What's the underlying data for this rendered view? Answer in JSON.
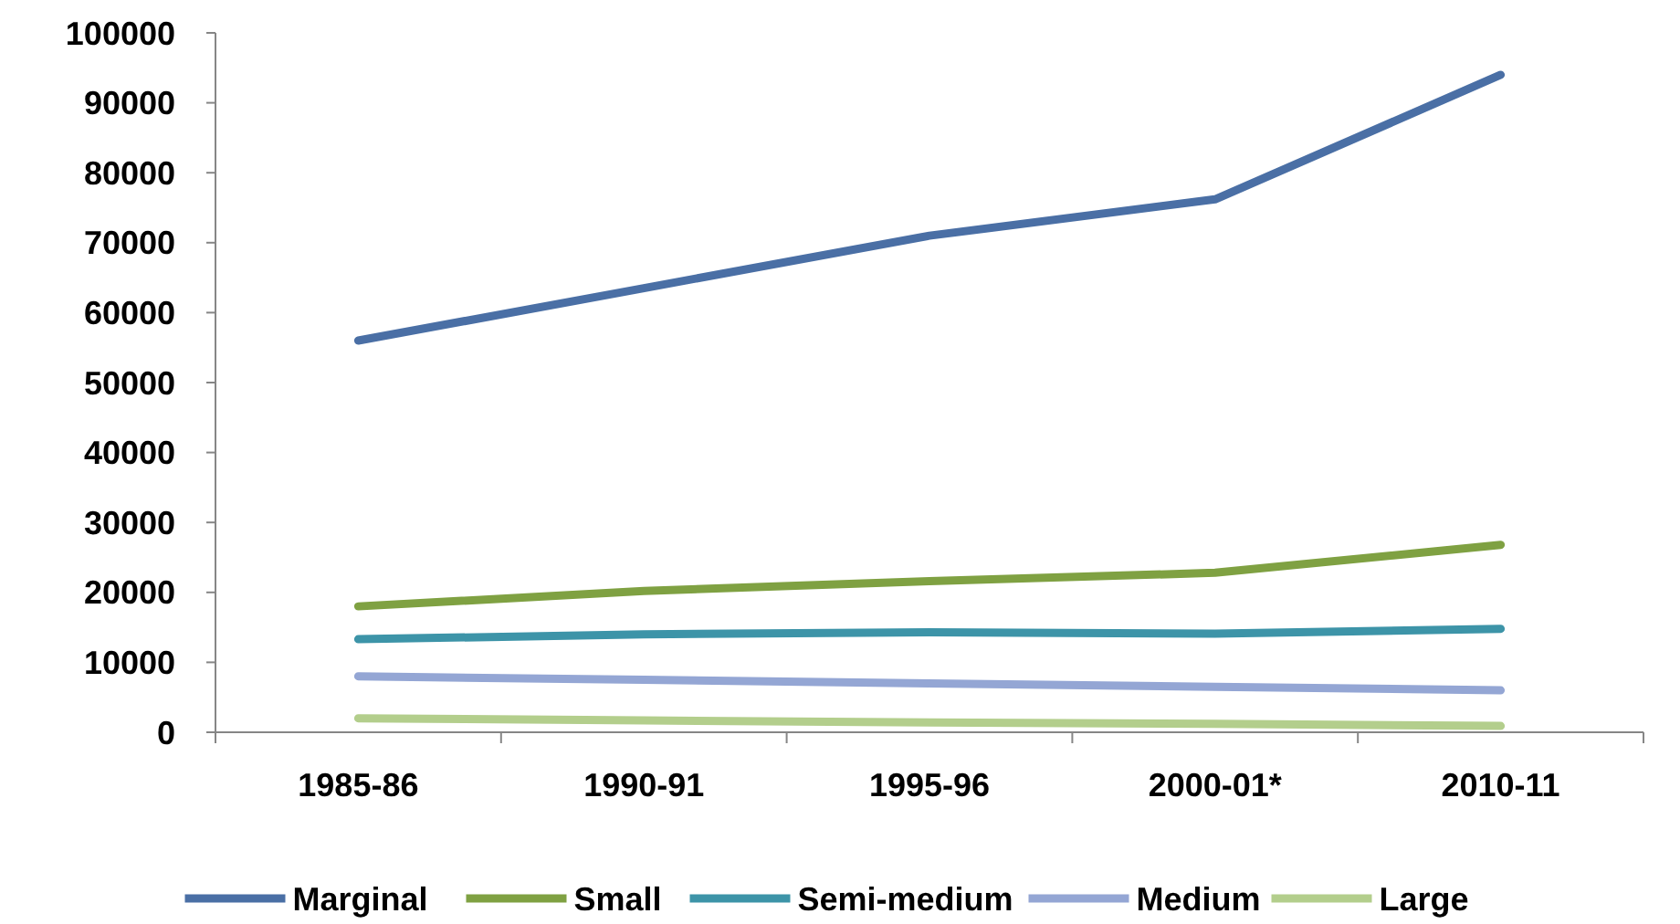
{
  "chart_data": {
    "type": "line",
    "categories": [
      "1985-86",
      "1990-91",
      "1995-96",
      "2000-01*",
      "2010-11"
    ],
    "series": [
      {
        "name": "Marginal",
        "color": "#4a6fa5",
        "values": [
          56000,
          63500,
          71000,
          76200,
          94000
        ]
      },
      {
        "name": "Small",
        "color": "#7fa142",
        "values": [
          18000,
          20200,
          21600,
          22800,
          26800
        ]
      },
      {
        "name": "Semi-medium",
        "color": "#3d94a8",
        "values": [
          13300,
          14000,
          14300,
          14100,
          14800
        ]
      },
      {
        "name": "Medium",
        "color": "#94a6d4",
        "values": [
          8000,
          7500,
          7000,
          6500,
          6000
        ]
      },
      {
        "name": "Large",
        "color": "#b3ce8c",
        "values": [
          2000,
          1700,
          1400,
          1200,
          900
        ]
      }
    ],
    "ylim": [
      0,
      100000
    ],
    "yticks": [
      0,
      10000,
      20000,
      30000,
      40000,
      50000,
      60000,
      70000,
      80000,
      90000,
      100000
    ],
    "grid": false,
    "legend": "bottom",
    "marker": "none",
    "line_style": "solid"
  }
}
